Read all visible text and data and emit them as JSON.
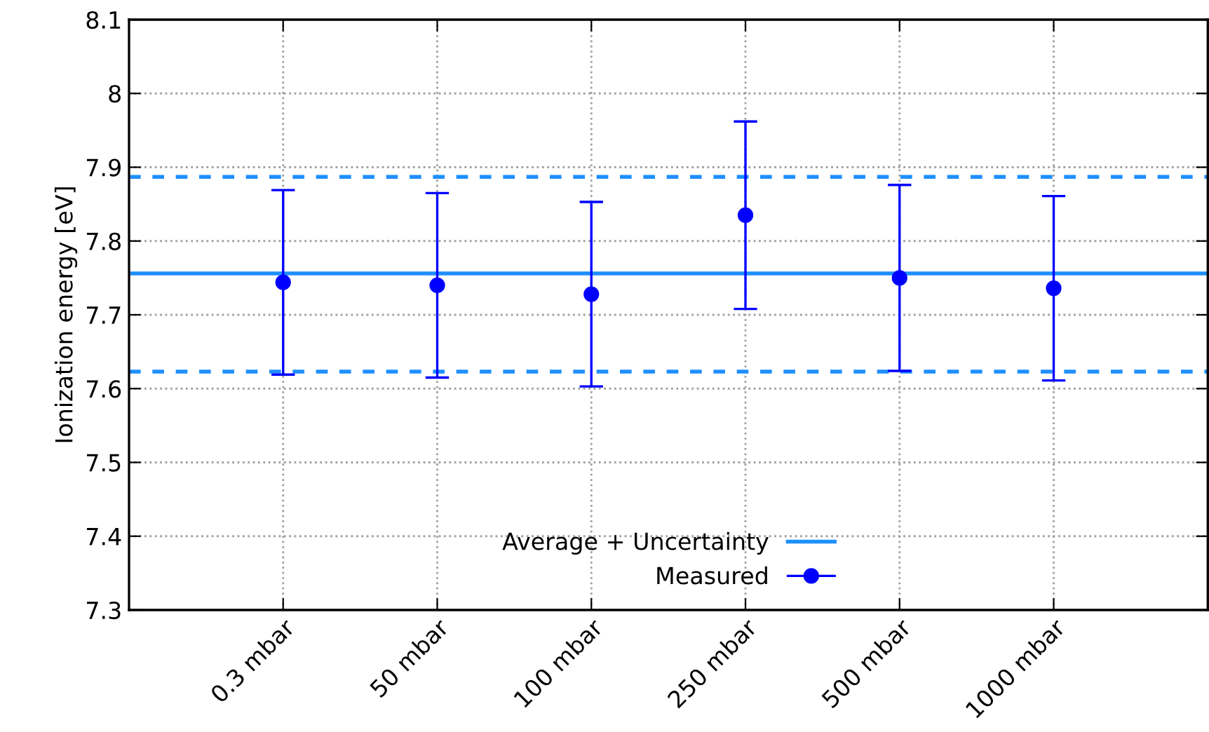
{
  "chart_data": {
    "type": "scatter",
    "ylabel": "Ionization energy [eV]",
    "categories": [
      "0.3 mbar",
      "50 mbar",
      "100 mbar",
      "250 mbar",
      "500 mbar",
      "1000 mbar"
    ],
    "series": [
      {
        "name": "Measured",
        "color": "#0000ff",
        "values": [
          7.744,
          7.74,
          7.728,
          7.835,
          7.75,
          7.736
        ],
        "errors": [
          0.125,
          0.125,
          0.125,
          0.127,
          0.126,
          0.125
        ]
      }
    ],
    "ref_lines": [
      {
        "axis": "y",
        "value": 7.756,
        "label": "Average + Uncertainty",
        "color": "#1e8fff",
        "line_style": "solid"
      },
      {
        "axis": "y",
        "value": 7.887,
        "color": "#1e8fff",
        "line_style": "dashed"
      },
      {
        "axis": "y",
        "value": 7.623,
        "color": "#1e8fff",
        "line_style": "dashed"
      }
    ],
    "ylim": [
      7.3,
      8.1
    ],
    "yticks": [
      7.3,
      7.4,
      7.5,
      7.6,
      7.7,
      7.8,
      7.9,
      8,
      8.1
    ],
    "grid": true,
    "legend": "bottom",
    "marker": "circle"
  }
}
